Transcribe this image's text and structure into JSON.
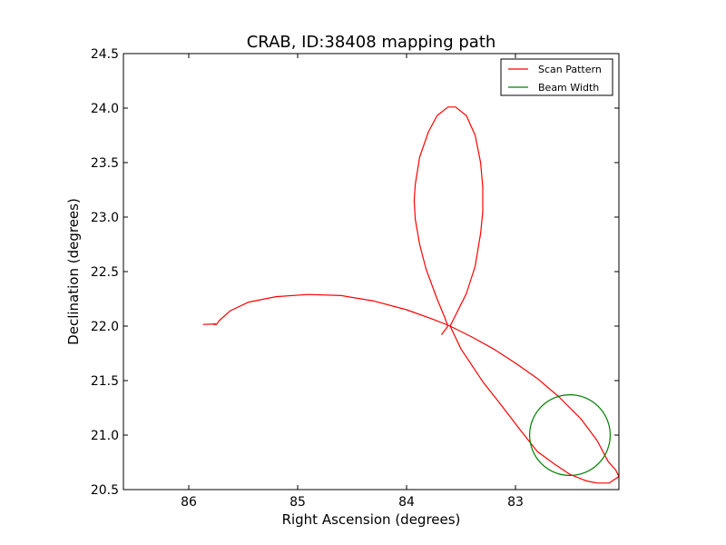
{
  "chart_data": {
    "type": "line",
    "title": "CRAB, ID:38408 mapping path",
    "xlabel": "Right Ascension (degrees)",
    "ylabel": "Declination (degrees)",
    "xlim": [
      86.6,
      82.05
    ],
    "ylim": [
      20.5,
      24.5
    ],
    "x_ticks": [
      86,
      85,
      84,
      83
    ],
    "x_tick_labels": [
      "86",
      "85",
      "84",
      "83"
    ],
    "y_ticks": [
      20.5,
      21.0,
      21.5,
      22.0,
      22.5,
      23.0,
      23.5,
      24.0,
      24.5
    ],
    "y_tick_labels": [
      "20.5",
      "21.0",
      "21.5",
      "22.0",
      "22.5",
      "23.0",
      "23.5",
      "24.0",
      "24.5"
    ],
    "grid": false,
    "legend_position": "top-right",
    "series": [
      {
        "name": "Scan Pattern",
        "color": "#ff0000",
        "points": [
          [
            85.75,
            22.01
          ],
          [
            85.72,
            22.05
          ],
          [
            85.62,
            22.14
          ],
          [
            85.45,
            22.22
          ],
          [
            85.2,
            22.27
          ],
          [
            84.9,
            22.29
          ],
          [
            84.6,
            22.28
          ],
          [
            84.3,
            22.23
          ],
          [
            84.0,
            22.15
          ],
          [
            83.75,
            22.06
          ],
          [
            83.6,
            22.0
          ],
          [
            83.4,
            21.9
          ],
          [
            83.2,
            21.79
          ],
          [
            83.0,
            21.66
          ],
          [
            82.8,
            21.52
          ],
          [
            82.6,
            21.35
          ],
          [
            82.4,
            21.15
          ],
          [
            82.25,
            20.95
          ],
          [
            82.15,
            20.76
          ],
          [
            82.08,
            20.68
          ],
          [
            82.05,
            20.62
          ],
          [
            82.08,
            20.6
          ],
          [
            82.14,
            20.56
          ],
          [
            82.25,
            20.56
          ],
          [
            82.35,
            20.58
          ],
          [
            82.5,
            20.64
          ],
          [
            82.65,
            20.74
          ],
          [
            82.8,
            20.85
          ],
          [
            82.95,
            21.04
          ],
          [
            83.15,
            21.3
          ],
          [
            83.3,
            21.49
          ],
          [
            83.5,
            21.79
          ],
          [
            83.6,
            22.0
          ],
          [
            83.55,
            22.1
          ],
          [
            83.45,
            22.3
          ],
          [
            83.37,
            22.55
          ],
          [
            83.32,
            22.85
          ],
          [
            83.3,
            23.05
          ],
          [
            83.3,
            23.27
          ],
          [
            83.32,
            23.5
          ],
          [
            83.37,
            23.75
          ],
          [
            83.45,
            23.93
          ],
          [
            83.55,
            24.01
          ],
          [
            83.62,
            24.01
          ],
          [
            83.72,
            23.93
          ],
          [
            83.8,
            23.78
          ],
          [
            83.88,
            23.55
          ],
          [
            83.92,
            23.3
          ],
          [
            83.93,
            23.15
          ],
          [
            83.92,
            22.98
          ],
          [
            83.88,
            22.75
          ],
          [
            83.82,
            22.52
          ],
          [
            83.72,
            22.25
          ],
          [
            83.65,
            22.08
          ],
          [
            83.62,
            22.0
          ],
          [
            83.68,
            21.92
          ]
        ],
        "tail": [
          [
            85.87,
            22.015
          ],
          [
            85.75,
            22.02
          ],
          [
            85.77,
            22.01
          ]
        ]
      },
      {
        "name": "Beam Width",
        "color": "#008000",
        "shape": "circle",
        "center": [
          82.5,
          21.0
        ],
        "radius_deg": 0.37
      }
    ]
  }
}
